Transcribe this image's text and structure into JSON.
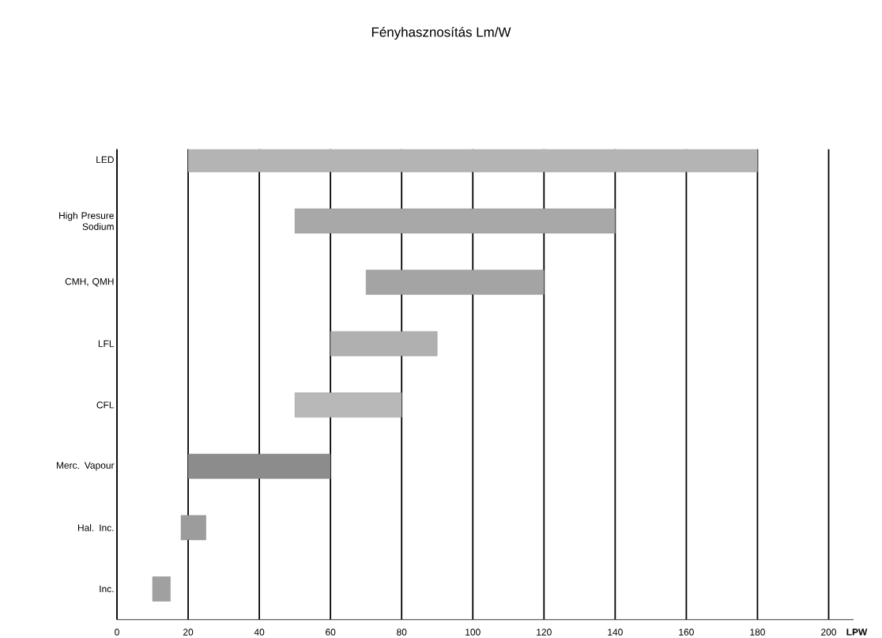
{
  "chart_data": {
    "type": "bar",
    "orientation": "horizontal",
    "title": "Fényhasznosítás Lm/W",
    "xlabel": "LPW",
    "categories": [
      "LED",
      "High Presure Sodium",
      "CMH, QMH",
      "LFL",
      "CFL",
      "Merc. Vapour",
      "Hal. Inc.",
      "Inc."
    ],
    "base": [
      20,
      50,
      70,
      60,
      50,
      20,
      18,
      10
    ],
    "values": [
      160,
      90,
      50,
      30,
      30,
      40,
      7,
      5
    ],
    "colors": [
      "#b4b4b4",
      "#a8a8a8",
      "#a4a4a4",
      "#b0b0b0",
      "#b8b8b8",
      "#8c8c8c",
      "#9c9c9c",
      "#a0a0a0"
    ],
    "xlim": [
      0,
      207
    ],
    "xticks": [
      0,
      20,
      40,
      60,
      80,
      100,
      120,
      140,
      160,
      180,
      200
    ],
    "grid": "x"
  }
}
